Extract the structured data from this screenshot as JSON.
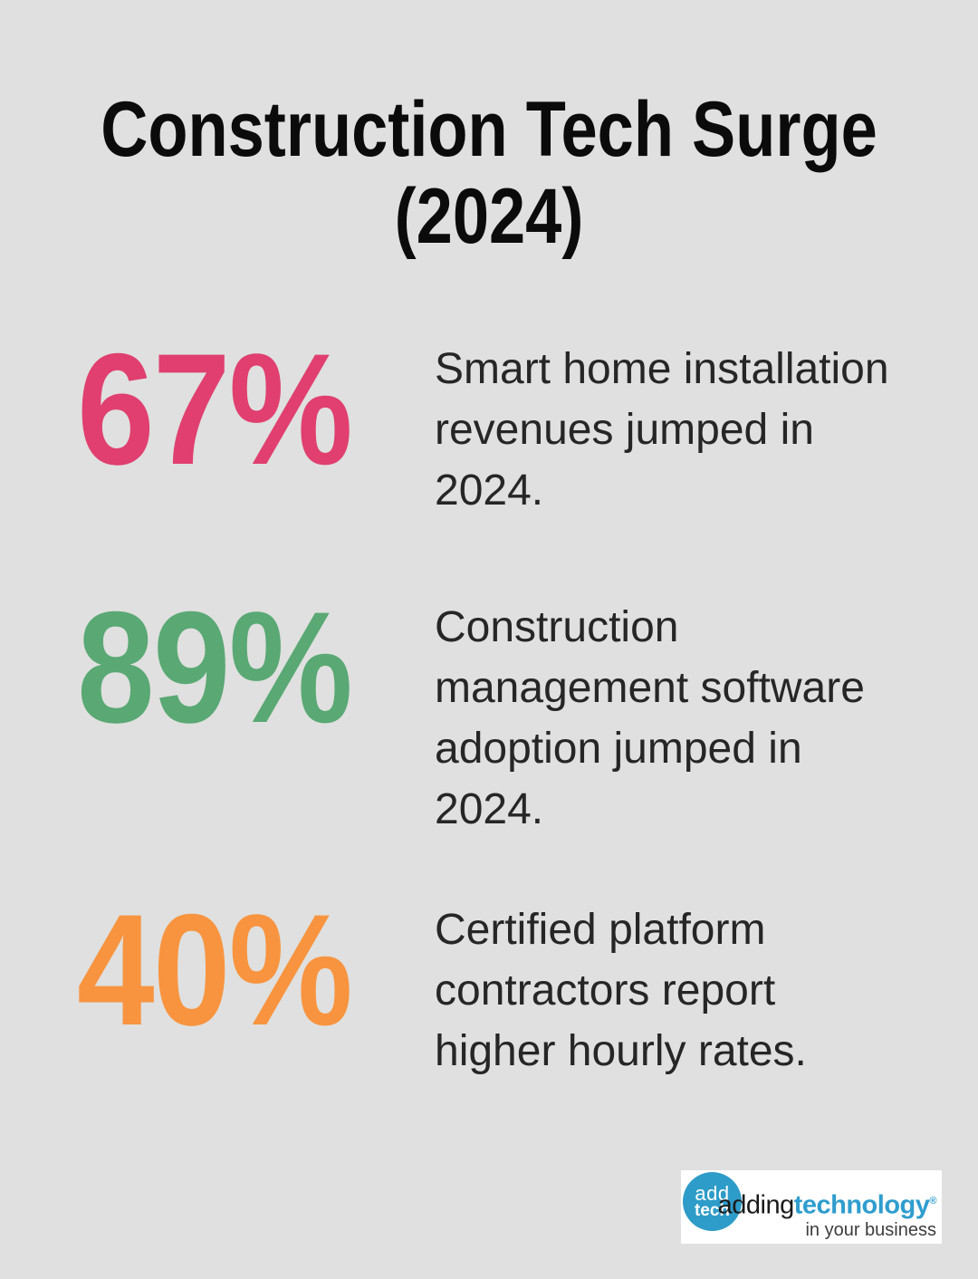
{
  "title": "Construction Tech Surge\n(2024)",
  "background_color": "#dfe0df",
  "stats": [
    {
      "value": "67%",
      "color": "#e03f70",
      "description": "Smart home installation\nrevenues jumped in\n2024."
    },
    {
      "value": "89%",
      "color": "#5aa874",
      "description": "Construction\nmanagement software\nadoption jumped in\n2024."
    },
    {
      "value": "40%",
      "color": "#f8943f",
      "description": "Certified platform\ncontractors report\nhigher hourly rates."
    }
  ],
  "chart_data": {
    "type": "table",
    "title": "Construction Tech Surge (2024)",
    "categories": [
      "Smart home installation revenues jumped in 2024.",
      "Construction management software adoption jumped in 2024.",
      "Certified platform contractors report higher hourly rates."
    ],
    "values": [
      67,
      89,
      40
    ]
  },
  "logo": {
    "circle_line1": "add",
    "circle_line2": "tech",
    "word_black": "adding",
    "word_blue": "technology",
    "registered": "®",
    "tagline": "in your business",
    "brand_blue": "#2f9dce",
    "circle_blue": "#2e9cc9"
  }
}
